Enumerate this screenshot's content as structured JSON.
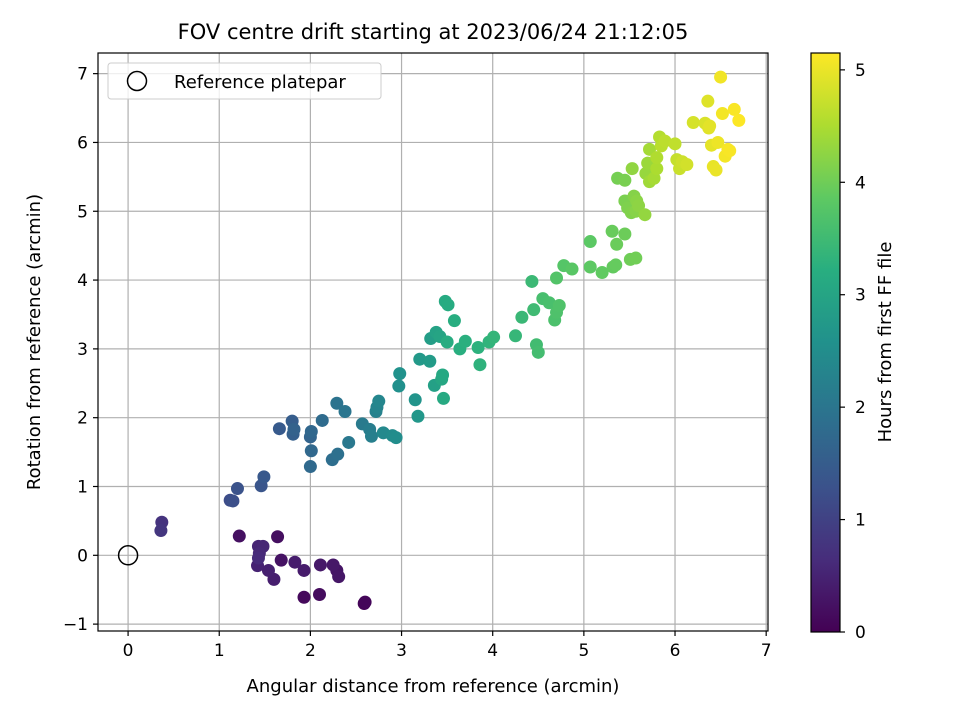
{
  "chart_data": {
    "type": "scatter",
    "title": "FOV centre drift starting at 2023/06/24 21:12:05",
    "xlabel": "Angular distance from reference (arcmin)",
    "ylabel": "Rotation from reference (arcmin)",
    "xlim": [
      -0.33,
      7.02
    ],
    "ylim": [
      -1.1,
      7.3
    ],
    "xticks": [
      0,
      1,
      2,
      3,
      4,
      5,
      6,
      7
    ],
    "yticks": [
      -1,
      0,
      1,
      2,
      3,
      4,
      5,
      6,
      7
    ],
    "grid": true,
    "legend": {
      "placement": "top-left",
      "entries": [
        "Reference platepar"
      ]
    },
    "reference_point": {
      "x": 0,
      "y": 0,
      "label": "Reference platepar"
    },
    "colorbar": {
      "label": "Hours from first FF file",
      "colormap": "viridis",
      "range": [
        0,
        5.15
      ],
      "ticks": [
        0,
        1,
        2,
        3,
        4,
        5
      ]
    },
    "points": [
      [
        2.59,
        -0.7,
        0.05
      ],
      [
        2.6,
        -0.68,
        0.08
      ],
      [
        1.93,
        -0.61,
        0.12
      ],
      [
        2.1,
        -0.57,
        0.16
      ],
      [
        1.64,
        0.27,
        0.2
      ],
      [
        1.22,
        0.28,
        0.22
      ],
      [
        1.68,
        -0.07,
        0.25
      ],
      [
        2.29,
        -0.22,
        0.28
      ],
      [
        2.31,
        -0.31,
        0.3
      ],
      [
        2.25,
        -0.14,
        0.33
      ],
      [
        2.11,
        -0.14,
        0.35
      ],
      [
        1.93,
        -0.22,
        0.38
      ],
      [
        1.83,
        -0.1,
        0.4
      ],
      [
        1.6,
        -0.35,
        0.43
      ],
      [
        1.54,
        -0.22,
        0.46
      ],
      [
        1.42,
        -0.15,
        0.49
      ],
      [
        1.43,
        0.13,
        0.52
      ],
      [
        1.48,
        0.13,
        0.55
      ],
      [
        1.44,
        0.03,
        0.58
      ],
      [
        1.43,
        -0.04,
        0.62
      ],
      [
        0.37,
        0.48,
        0.75
      ],
      [
        0.36,
        0.36,
        0.8
      ],
      [
        1.12,
        0.8,
        1.2
      ],
      [
        1.15,
        0.79,
        1.25
      ],
      [
        1.2,
        0.97,
        1.3
      ],
      [
        1.46,
        1.01,
        1.35
      ],
      [
        1.49,
        1.14,
        1.4
      ],
      [
        1.66,
        1.84,
        1.45
      ],
      [
        1.8,
        1.95,
        1.5
      ],
      [
        1.81,
        1.76,
        1.55
      ],
      [
        1.82,
        1.83,
        1.6
      ],
      [
        2.0,
        1.72,
        1.65
      ],
      [
        2.01,
        1.8,
        1.7
      ],
      [
        2.01,
        1.52,
        1.73
      ],
      [
        2.0,
        1.29,
        1.76
      ],
      [
        2.13,
        1.96,
        1.8
      ],
      [
        2.24,
        1.39,
        1.85
      ],
      [
        2.3,
        1.47,
        1.9
      ],
      [
        2.29,
        2.21,
        1.95
      ],
      [
        2.38,
        2.09,
        2.0
      ],
      [
        2.42,
        1.64,
        2.05
      ],
      [
        2.57,
        1.91,
        2.1
      ],
      [
        2.65,
        1.83,
        2.15
      ],
      [
        2.67,
        1.73,
        2.2
      ],
      [
        2.72,
        2.09,
        2.25
      ],
      [
        2.73,
        2.15,
        2.3
      ],
      [
        2.75,
        2.24,
        2.35
      ],
      [
        2.8,
        1.78,
        2.4
      ],
      [
        2.9,
        1.74,
        2.45
      ],
      [
        2.94,
        1.71,
        2.5
      ],
      [
        2.97,
        2.46,
        2.55
      ],
      [
        2.98,
        2.64,
        2.6
      ],
      [
        3.15,
        2.26,
        2.65
      ],
      [
        3.18,
        2.02,
        2.7
      ],
      [
        3.2,
        2.85,
        2.75
      ],
      [
        3.31,
        2.82,
        2.8
      ],
      [
        3.32,
        3.15,
        2.85
      ],
      [
        3.36,
        2.47,
        2.9
      ],
      [
        3.38,
        3.24,
        2.95
      ],
      [
        3.42,
        3.18,
        3.0
      ],
      [
        3.44,
        2.56,
        3.05
      ],
      [
        3.45,
        2.62,
        3.08
      ],
      [
        3.46,
        2.28,
        3.1
      ],
      [
        3.48,
        3.69,
        3.12
      ],
      [
        3.51,
        3.64,
        3.15
      ],
      [
        3.5,
        3.1,
        3.18
      ],
      [
        3.58,
        3.41,
        3.2
      ],
      [
        3.64,
        3.0,
        3.23
      ],
      [
        3.7,
        3.11,
        3.25
      ],
      [
        3.84,
        3.02,
        3.28
      ],
      [
        3.86,
        2.77,
        3.3
      ],
      [
        3.96,
        3.1,
        3.33
      ],
      [
        4.01,
        3.17,
        3.36
      ],
      [
        4.25,
        3.19,
        3.4
      ],
      [
        4.32,
        3.46,
        3.43
      ],
      [
        4.43,
        3.98,
        3.46
      ],
      [
        4.45,
        3.57,
        3.5
      ],
      [
        4.48,
        3.06,
        3.53
      ],
      [
        4.5,
        2.95,
        3.56
      ],
      [
        4.55,
        3.73,
        3.6
      ],
      [
        4.62,
        3.67,
        3.62
      ],
      [
        4.68,
        3.42,
        3.65
      ],
      [
        4.7,
        3.53,
        3.68
      ],
      [
        4.73,
        3.63,
        3.7
      ],
      [
        4.7,
        4.03,
        3.73
      ],
      [
        4.78,
        4.21,
        3.76
      ],
      [
        4.87,
        4.16,
        3.8
      ],
      [
        5.07,
        4.56,
        3.83
      ],
      [
        5.07,
        4.19,
        3.85
      ],
      [
        5.2,
        4.11,
        3.88
      ],
      [
        5.32,
        4.19,
        3.9
      ],
      [
        5.35,
        4.22,
        3.92
      ],
      [
        5.31,
        4.71,
        3.94
      ],
      [
        5.36,
        4.52,
        3.96
      ],
      [
        5.45,
        4.67,
        3.98
      ],
      [
        5.51,
        4.3,
        4.0
      ],
      [
        5.57,
        4.32,
        4.02
      ],
      [
        5.37,
        5.48,
        4.05
      ],
      [
        5.45,
        5.45,
        4.08
      ],
      [
        5.45,
        5.15,
        4.1
      ],
      [
        5.48,
        5.05,
        4.12
      ],
      [
        5.52,
        4.98,
        4.15
      ],
      [
        5.55,
        5.22,
        4.18
      ],
      [
        5.57,
        5.0,
        4.2
      ],
      [
        5.58,
        5.15,
        4.22
      ],
      [
        5.6,
        5.08,
        4.25
      ],
      [
        5.53,
        5.62,
        4.28
      ],
      [
        5.67,
        4.95,
        4.3
      ],
      [
        5.68,
        5.55,
        4.33
      ],
      [
        5.7,
        5.7,
        4.36
      ],
      [
        5.72,
        5.43,
        4.4
      ],
      [
        5.72,
        5.9,
        4.43
      ],
      [
        5.77,
        5.48,
        4.46
      ],
      [
        5.8,
        5.62,
        4.5
      ],
      [
        5.8,
        5.78,
        4.53
      ],
      [
        5.83,
        6.08,
        4.56
      ],
      [
        5.85,
        5.95,
        4.6
      ],
      [
        5.89,
        6.02,
        4.63
      ],
      [
        6.0,
        5.98,
        4.66
      ],
      [
        6.02,
        5.75,
        4.7
      ],
      [
        6.05,
        5.62,
        4.73
      ],
      [
        6.08,
        5.72,
        4.76
      ],
      [
        6.13,
        5.68,
        4.8
      ],
      [
        6.2,
        6.29,
        4.83
      ],
      [
        6.33,
        6.28,
        4.86
      ],
      [
        6.36,
        6.6,
        4.9
      ],
      [
        6.37,
        6.21,
        4.92
      ],
      [
        6.38,
        6.24,
        4.94
      ],
      [
        6.4,
        5.96,
        4.96
      ],
      [
        6.42,
        5.65,
        4.98
      ],
      [
        6.45,
        5.6,
        5.0
      ],
      [
        6.47,
        6.0,
        5.02
      ],
      [
        6.5,
        6.95,
        5.05
      ],
      [
        6.52,
        6.42,
        5.07
      ],
      [
        6.55,
        5.8,
        5.08
      ],
      [
        6.58,
        5.9,
        5.1
      ],
      [
        6.6,
        5.88,
        5.11
      ],
      [
        6.65,
        6.48,
        5.12
      ],
      [
        6.7,
        6.32,
        5.14
      ]
    ]
  }
}
